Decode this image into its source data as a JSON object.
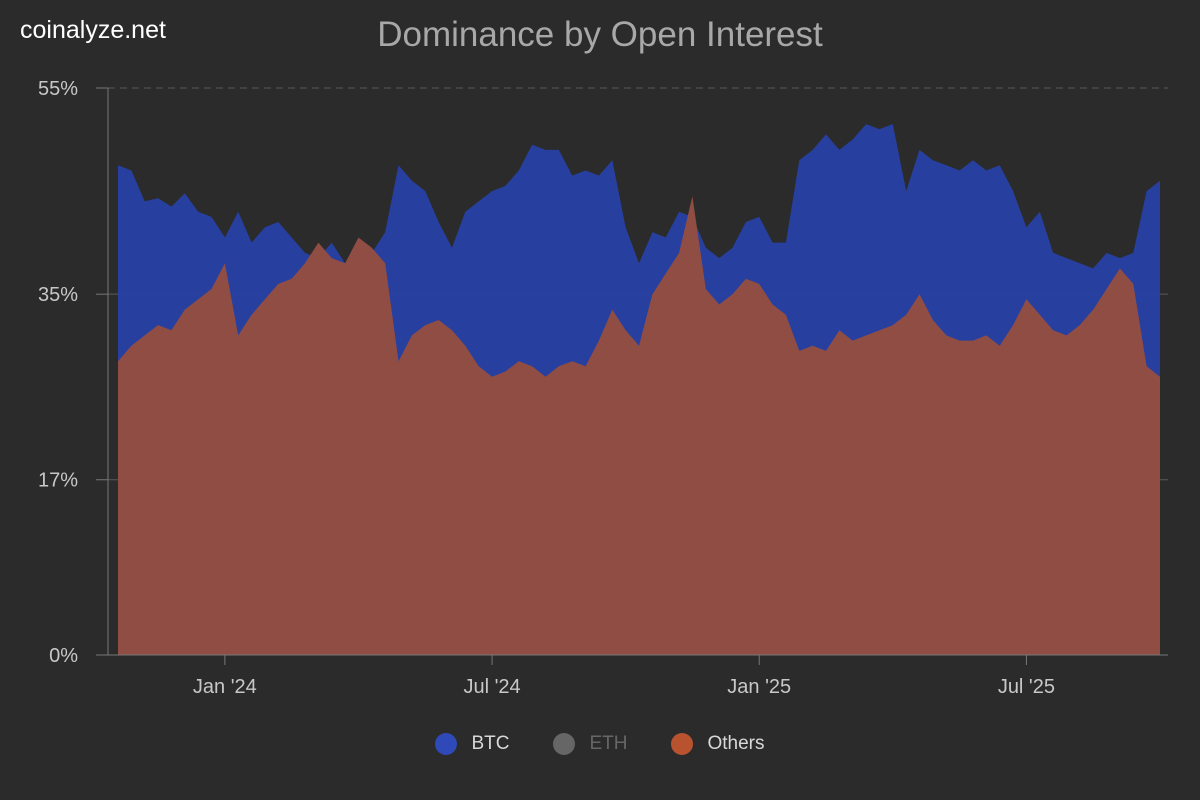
{
  "brand": "coinalyze.net",
  "chart_data": {
    "type": "area",
    "title": "Dominance by Open Interest",
    "yticks": [
      {
        "value": 0,
        "label": "0%"
      },
      {
        "value": 17,
        "label": "17%"
      },
      {
        "value": 35,
        "label": "35%"
      },
      {
        "value": 55,
        "label": "55%"
      }
    ],
    "xticks": [
      {
        "index": 8,
        "label": "Jan '24"
      },
      {
        "index": 28,
        "label": "Jul '24"
      },
      {
        "index": 48,
        "label": "Jan '25"
      },
      {
        "index": 68,
        "label": "Jul '25"
      }
    ],
    "x_range": [
      "Oct '23",
      "Oct '25"
    ],
    "series": [
      {
        "name": "BTC",
        "color": "#2741a6",
        "values": [
          47.5,
          47.0,
          44.0,
          44.3,
          43.5,
          44.8,
          43.0,
          42.5,
          40.5,
          43.0,
          40.0,
          41.5,
          42.0,
          40.5,
          39.0,
          38.5,
          40.0,
          38.0,
          38.5,
          39.0,
          41.0,
          47.5,
          46.0,
          45.0,
          42.0,
          39.5,
          43.0,
          44.0,
          45.0,
          45.5,
          47.0,
          49.5,
          49.0,
          49.0,
          46.5,
          47.0,
          46.5,
          48.0,
          41.5,
          38.0,
          41.0,
          40.5,
          43.0,
          42.5,
          39.5,
          38.5,
          39.5,
          42.0,
          42.5,
          40.0,
          40.0,
          48.0,
          49.0,
          50.5,
          49.0,
          50.0,
          51.5,
          51.0,
          51.5,
          45.0,
          49.0,
          48.0,
          47.5,
          47.0,
          48.0,
          47.0,
          47.5,
          45.0,
          41.5,
          43.0,
          39.0,
          38.5,
          38.0,
          37.5,
          39.0,
          38.5,
          39.0,
          45.0,
          46.0
        ]
      },
      {
        "name": "ETH",
        "color": "#666666",
        "hidden": true,
        "values": []
      },
      {
        "name": "Others",
        "color": "#904d43",
        "values": [
          28.5,
          30.0,
          31.0,
          32.0,
          31.5,
          33.5,
          34.5,
          35.5,
          38.0,
          31.0,
          33.0,
          34.5,
          36.0,
          36.5,
          38.0,
          40.0,
          38.5,
          38.0,
          40.5,
          39.5,
          38.0,
          28.5,
          31.0,
          32.0,
          32.5,
          31.5,
          30.0,
          28.0,
          27.0,
          27.5,
          28.5,
          28.0,
          27.0,
          28.0,
          28.5,
          28.0,
          30.5,
          33.5,
          31.5,
          30.0,
          35.0,
          37.0,
          39.0,
          44.5,
          35.5,
          34.0,
          35.0,
          36.5,
          36.0,
          34.0,
          33.0,
          29.5,
          30.0,
          29.5,
          31.5,
          30.5,
          31.0,
          31.5,
          32.0,
          33.0,
          35.0,
          32.5,
          31.0,
          30.5,
          30.5,
          31.0,
          30.0,
          32.0,
          34.5,
          33.0,
          31.5,
          31.0,
          32.0,
          33.5,
          35.5,
          37.5,
          36.0,
          28.0,
          27.0
        ]
      }
    ]
  }
}
